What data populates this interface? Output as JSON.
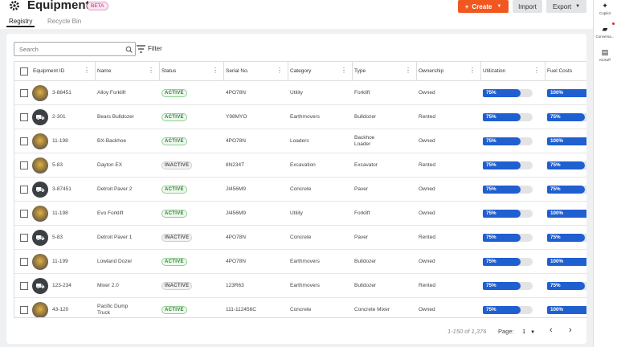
{
  "header": {
    "title": "Equipment",
    "badge": "BETA",
    "buttons": [
      "Create",
      "Import",
      "Export"
    ]
  },
  "tabs": [
    "Registry",
    "Recycle Bin"
  ],
  "toolbar": {
    "search": "Search",
    "filter": "Filter"
  },
  "table": {
    "columns": [
      "Equipment ID",
      "Name",
      "Status",
      "Serial No.",
      "Category",
      "Type",
      "Ownership",
      "Utilization",
      "Fuel Costs"
    ],
    "status_styles": {
      "ACTIVE": {
        "color": "#2e7d32",
        "border": "#8fcf92",
        "bg": "#eef8ee"
      },
      "INACTIVE": {
        "color": "#555",
        "border": "#cfcfcf",
        "bg": "#f1f1f1"
      }
    },
    "bar_color": "#1f5fd0",
    "rows": [
      {
        "image": "photo",
        "cells": [
          "3-88451",
          "Alloy Forklift",
          "ACTIVE",
          "4PO78N",
          "Utility",
          "Forklift",
          "Owned",
          {
            "value": 75,
            "label": "75%"
          },
          {
            "value": 100,
            "label": "100%"
          }
        ]
      },
      {
        "image": "icon",
        "cells": [
          "2-301",
          "Bears Bulldozer",
          "ACTIVE",
          "Y98MYO",
          "Earthmovers",
          "Bulldozer",
          "Rented",
          {
            "value": 75,
            "label": "75%"
          },
          {
            "value": 75,
            "label": "75%"
          }
        ]
      },
      {
        "image": "photo",
        "cells": [
          "11-198",
          "BX-Backhoe",
          "ACTIVE",
          "4PO78N",
          "Loaders",
          "Backhoe Loader",
          "Owned",
          {
            "value": 75,
            "label": "75%"
          },
          {
            "value": 100,
            "label": "100%"
          }
        ]
      },
      {
        "image": "photo",
        "cells": [
          "5-83",
          "Dayton EX",
          "INACTIVE",
          "8N234T",
          "Excavation",
          "Excavator",
          "Rented",
          {
            "value": 75,
            "label": "75%"
          },
          {
            "value": 75,
            "label": "75%"
          }
        ]
      },
      {
        "image": "icon",
        "cells": [
          "3-87451",
          "Detroit Paver 2",
          "ACTIVE",
          "JI456M9",
          "Concrete",
          "Paver",
          "Owned",
          {
            "value": 75,
            "label": "75%"
          },
          {
            "value": 75,
            "label": "75%"
          }
        ]
      },
      {
        "image": "photo",
        "cells": [
          "11-198",
          "Evo Forklift",
          "ACTIVE",
          "JI456M9",
          "Utility",
          "Forklift",
          "Owned",
          {
            "value": 75,
            "label": "75%"
          },
          {
            "value": 100,
            "label": "100%"
          }
        ]
      },
      {
        "image": "icon",
        "cells": [
          "5-83",
          "Detroit Paver 1",
          "INACTIVE",
          "4PO78N",
          "Concrete",
          "Paver",
          "Rented",
          {
            "value": 75,
            "label": "75%"
          },
          {
            "value": 75,
            "label": "75%"
          }
        ]
      },
      {
        "image": "photo",
        "cells": [
          "11-199",
          "Lowland Dozer",
          "ACTIVE",
          "4PO78N",
          "Earthmovers",
          "Bulldozer",
          "Owned",
          {
            "value": 75,
            "label": "75%"
          },
          {
            "value": 100,
            "label": "100%"
          }
        ]
      },
      {
        "image": "icon",
        "cells": [
          "123-234",
          "Mixer 2.0",
          "INACTIVE",
          "123R63",
          "Earthmovers",
          "Bulldozer",
          "Rented",
          {
            "value": 75,
            "label": "75%"
          },
          {
            "value": 75,
            "label": "75%"
          }
        ]
      },
      {
        "image": "photo",
        "cells": [
          "43-120",
          "Pacific Dump Truck",
          "ACTIVE",
          "111-112456C",
          "Concrete",
          "Concrete Mixer",
          "Owned",
          {
            "value": 75,
            "label": "75%"
          },
          {
            "value": 100,
            "label": "100%"
          }
        ]
      }
    ]
  },
  "pagination": {
    "range": "1-150 of 1,376",
    "page_label": "Page:",
    "page": "1"
  },
  "sidebar": [
    "Copilot",
    "Conversa...",
    "Kickoff"
  ]
}
